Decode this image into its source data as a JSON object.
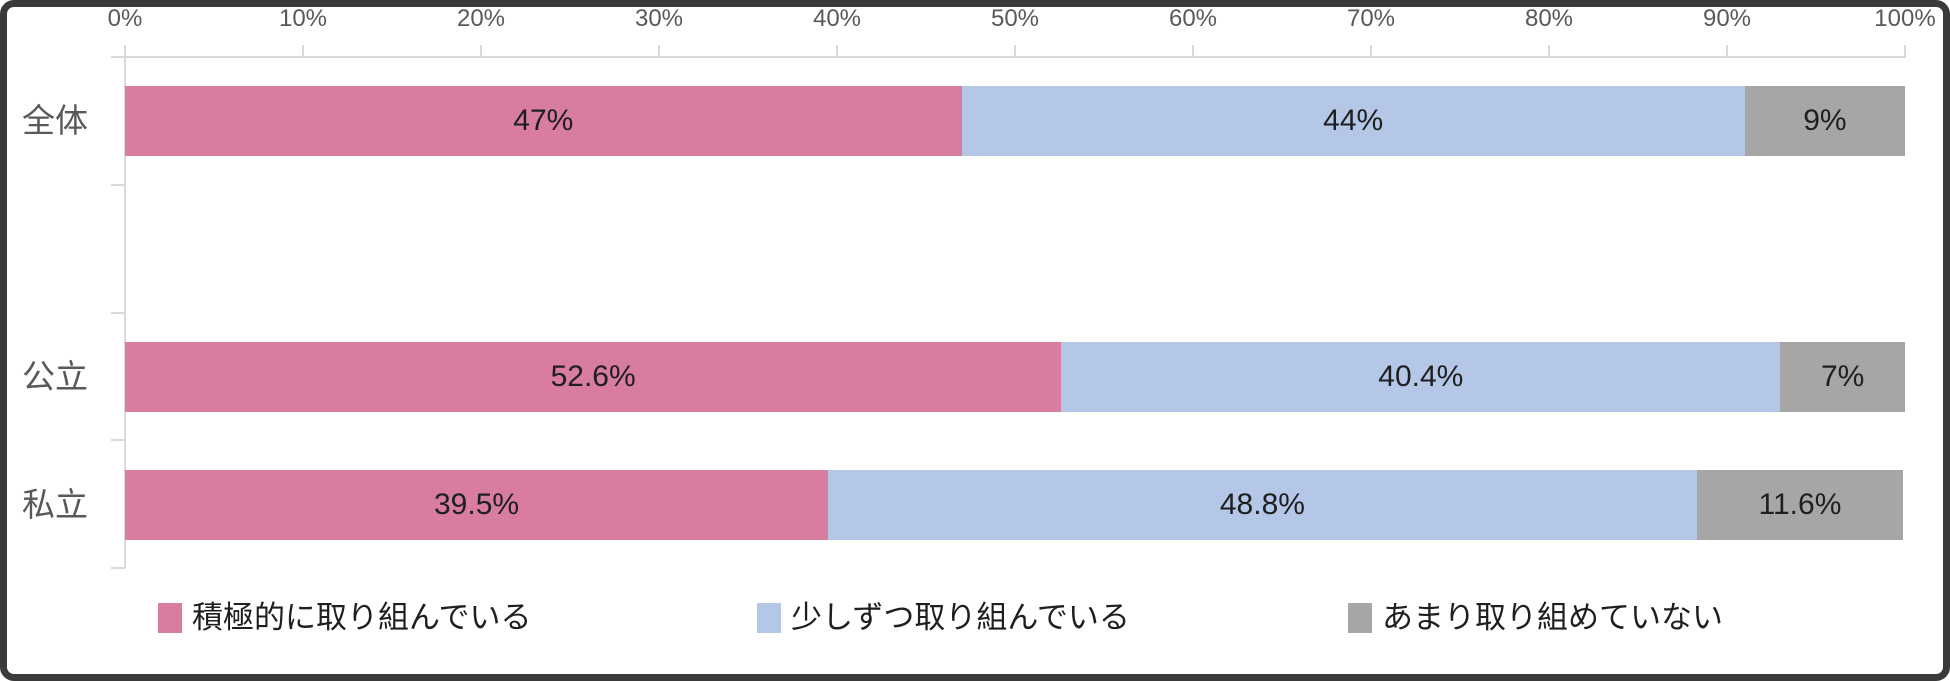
{
  "chart_data": {
    "type": "bar",
    "orientation": "horizontal",
    "stacked": true,
    "title": "",
    "x_axis": {
      "position": "top",
      "min": 0,
      "max": 100,
      "unit": "%",
      "grid": false,
      "ticks": [
        "0%",
        "10%",
        "20%",
        "30%",
        "40%",
        "50%",
        "60%",
        "70%",
        "80%",
        "90%",
        "100%"
      ]
    },
    "categories": [
      "全体",
      "公立",
      "私立"
    ],
    "series": [
      {
        "name": "積極的に取り組んでいる",
        "color": "#D87CA0",
        "values": [
          47,
          52.6,
          39.5
        ],
        "labels": [
          "47%",
          "52.6%",
          "39.5%"
        ]
      },
      {
        "name": "少しずつ取り組んでいる",
        "color": "#B4C7E7",
        "values": [
          44,
          40.4,
          48.8
        ],
        "labels": [
          "44%",
          "40.4%",
          "48.8%"
        ]
      },
      {
        "name": "あまり取り組めていない",
        "color": "#A6A6A6",
        "values": [
          9,
          7,
          11.6
        ],
        "labels": [
          "9%",
          "7%",
          "11.6%"
        ]
      }
    ],
    "legend": {
      "position": "bottom",
      "entries": [
        "積極的に取り組んでいる",
        "少しずつ取り組んでいる",
        "あまり取り組めていない"
      ]
    },
    "colors": {
      "axis_text": "#595959",
      "category_text": "#595959",
      "data_label_text": "#1F1F1F",
      "axis_line": "#D9D9D9",
      "frame_border": "#3A3A3A",
      "background": "#FFFFFF"
    }
  }
}
